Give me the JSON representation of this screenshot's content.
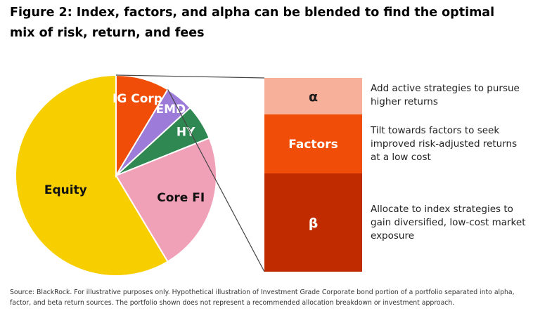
{
  "title": "Figure 2: Index, factors, and alpha can be blended to find the optimal mix of risk, return, and fees",
  "chart_data": [
    {
      "type": "pie",
      "categories": [
        "Equity",
        "Core FI",
        "HY",
        "EMD",
        "IG Corp"
      ],
      "values": [
        58.6,
        22.5,
        5.7,
        4.6,
        8.6
      ],
      "colors": [
        "#f7cf00",
        "#f0a1b8",
        "#2f8752",
        "#9d7bd8",
        "#f04e08"
      ],
      "start_angle_deg": 90
    },
    {
      "type": "bar",
      "stacked": true,
      "categories": [
        "α",
        "Factors",
        "β"
      ],
      "values": [
        26,
        42,
        70
      ],
      "colors": [
        "#f7b19a",
        "#f04e08",
        "#c02c00"
      ],
      "descriptions": [
        "Add active strategies to pursue higher returns",
        "Tilt towards factors to seek improved risk-adjusted returns at a low cost",
        "Allocate to index strategies to gain diversified, low-cost market exposure"
      ]
    }
  ],
  "source": "Source: BlackRock. For illustrative purposes only. Hypothetical illustration of Investment Grade Corporate bond portion of a portfolio separated into alpha, factor, and beta return sources. The portfolio shown does not represent a recommended allocation breakdown or investment approach."
}
